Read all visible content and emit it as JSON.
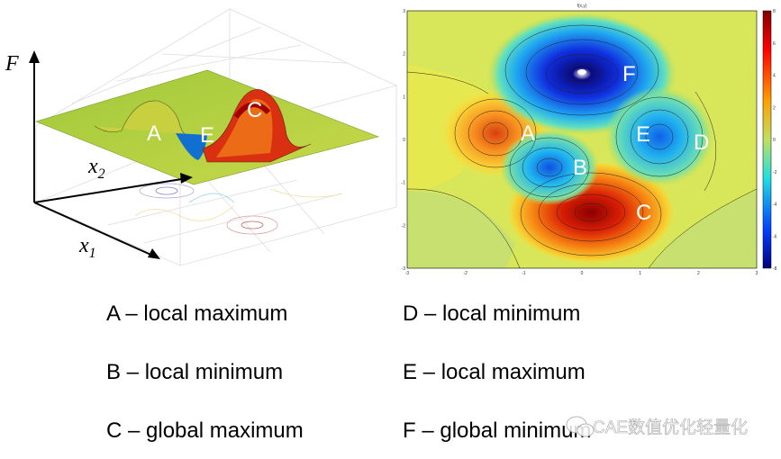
{
  "surface_plot": {
    "axis_labels": {
      "z": "F",
      "y": {
        "base": "x",
        "sub": "2"
      },
      "x": {
        "base": "x",
        "sub": "1"
      }
    },
    "point_labels": [
      "A",
      "E",
      "C"
    ]
  },
  "contour_plot": {
    "title": "f(x,y)",
    "x_ticks": [
      "-3",
      "-2",
      "-1",
      "0",
      "1",
      "2",
      "3"
    ],
    "y_ticks": [
      "3",
      "2",
      "1",
      "0",
      "-1",
      "-2",
      "-3"
    ],
    "colorbar_ticks": [
      "8",
      "6",
      "4",
      "2",
      "0",
      "-2",
      "-4",
      "-6",
      "-8"
    ],
    "point_labels": [
      "F",
      "A",
      "E",
      "D",
      "B",
      "C"
    ]
  },
  "legend": [
    "A – local maximum",
    "B – local minimum",
    "C – global maximum",
    "D – local minimum",
    "E – local maximum",
    "F – global minimum"
  ],
  "watermark": "CAE数值优化轻量化"
}
